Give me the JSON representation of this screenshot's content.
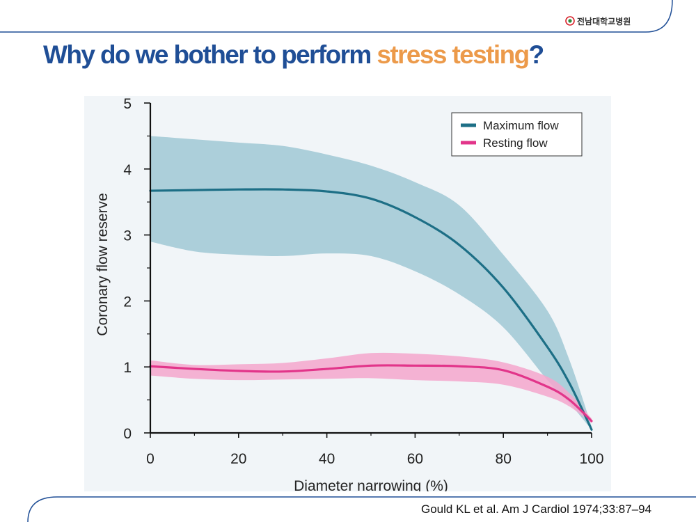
{
  "slide": {
    "logo_text": "전남대학교병원",
    "title_prefix": "Why do we bother to perform ",
    "title_highlight": "stress testing",
    "title_suffix": "?",
    "citation": "Gould KL et al. Am J Cardiol 1974;33:87–94"
  },
  "colors": {
    "title": "#1f4e96",
    "highlight": "#ec9a4a",
    "max_line": "#1d6f86",
    "max_band": "#a8ccd8",
    "rest_line": "#e2358a",
    "rest_band": "#f4a6cc",
    "frame": "#1f4e96"
  },
  "chart_data": {
    "type": "line",
    "title": "",
    "xlabel": "Diameter narrowing (%)",
    "ylabel": "Coronary flow reserve",
    "xlim": [
      0,
      100
    ],
    "ylim": [
      0,
      5
    ],
    "x_ticks": [
      0,
      20,
      40,
      60,
      80,
      100
    ],
    "y_ticks": [
      0,
      1,
      2,
      3,
      4,
      5
    ],
    "grid": false,
    "legend_position": "top-right",
    "x": [
      0,
      10,
      20,
      30,
      40,
      50,
      60,
      70,
      80,
      90,
      95,
      100
    ],
    "series": [
      {
        "name": "Maximum flow",
        "values": [
          3.67,
          3.68,
          3.69,
          3.69,
          3.66,
          3.55,
          3.27,
          2.85,
          2.2,
          1.3,
          0.75,
          0.05
        ],
        "upper": [
          4.5,
          4.45,
          4.4,
          4.35,
          4.22,
          4.05,
          3.8,
          3.45,
          2.7,
          1.85,
          1.1,
          0.1
        ],
        "lower": [
          2.9,
          2.75,
          2.7,
          2.68,
          2.72,
          2.68,
          2.45,
          2.1,
          1.6,
          0.8,
          0.45,
          0.05
        ]
      },
      {
        "name": "Resting flow",
        "values": [
          1.01,
          0.97,
          0.94,
          0.93,
          0.97,
          1.02,
          1.02,
          1.01,
          0.95,
          0.7,
          0.5,
          0.18
        ],
        "upper": [
          1.1,
          1.03,
          1.04,
          1.06,
          1.13,
          1.21,
          1.2,
          1.16,
          1.07,
          0.85,
          0.6,
          0.22
        ],
        "lower": [
          0.87,
          0.82,
          0.8,
          0.81,
          0.82,
          0.83,
          0.8,
          0.78,
          0.73,
          0.55,
          0.4,
          0.15
        ]
      }
    ]
  }
}
